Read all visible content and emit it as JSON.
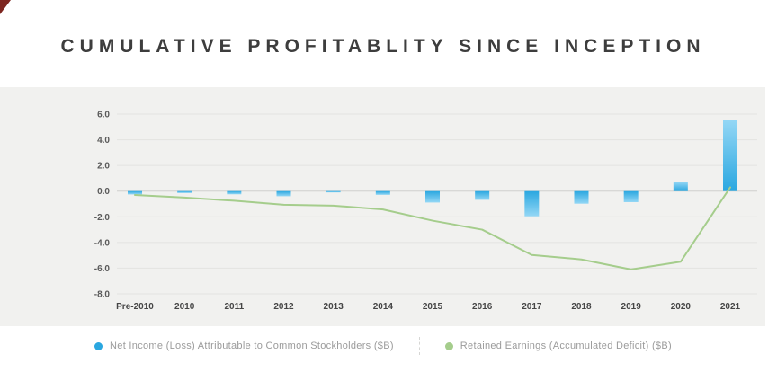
{
  "title": "CUMULATIVE PROFITABLITY SINCE INCEPTION",
  "colors": {
    "bar": "#2aa7e0",
    "bar_light": "#94d7f5",
    "line": "#a5cd8c",
    "panel": "#f1f1ef",
    "grid": "#e3e3e1",
    "zero_line": "#cfcfcd",
    "y_tick_text": "#5a5a5a",
    "x_tick_text": "#454545",
    "legend_text": "#9b9b9b",
    "title_text": "#3d3d3d",
    "corner_mark": "#7e2620"
  },
  "chart_data": {
    "type": "bar",
    "categories": [
      "Pre-2010",
      "2010",
      "2011",
      "2012",
      "2013",
      "2014",
      "2015",
      "2016",
      "2017",
      "2018",
      "2019",
      "2020",
      "2021"
    ],
    "series": [
      {
        "name": "Net Income (Loss) Attributable to Common Stockholders ($B)",
        "type": "bar",
        "values": [
          -0.26,
          -0.15,
          -0.25,
          -0.4,
          -0.07,
          -0.29,
          -0.89,
          -0.68,
          -1.96,
          -0.98,
          -0.86,
          0.72,
          5.52
        ]
      },
      {
        "name": "Retained Earnings (Accumulated Deficit) ($B)",
        "type": "line",
        "values": [
          -0.3,
          -0.5,
          -0.75,
          -1.06,
          -1.13,
          -1.43,
          -2.3,
          -3.0,
          -4.97,
          -5.32,
          -6.1,
          -5.5,
          0.3
        ]
      }
    ],
    "title": "CUMULATIVE PROFITABLITY SINCE INCEPTION",
    "xlabel": "",
    "ylabel": "",
    "ylim": [
      -8.0,
      6.0
    ],
    "yticks": [
      6.0,
      4.0,
      2.0,
      0.0,
      -2.0,
      -4.0,
      -6.0,
      -8.0
    ],
    "grid": true,
    "legend_position": "bottom"
  }
}
